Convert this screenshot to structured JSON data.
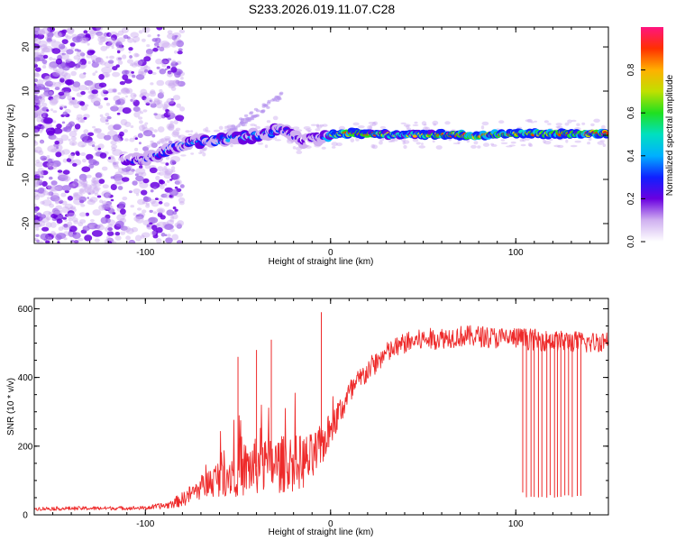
{
  "title": "S233.2026.019.11.07.C28",
  "colors": {
    "snr_line": "#ee2a2a",
    "scatter": "#8a2be2",
    "frame": "#000000"
  },
  "chart_data": [
    {
      "type": "heatmap",
      "name": "spectrogram",
      "xlabel": "Height of straight line (km)",
      "ylabel": "Frequency (Hz)",
      "xlim": [
        -160,
        150
      ],
      "ylim": [
        -24.5,
        24.5
      ],
      "xticks": [
        -100,
        0,
        100
      ],
      "xtick_labels": [
        "-100",
        "0",
        "100"
      ],
      "yticks": [
        -20,
        -10,
        0,
        10,
        20
      ],
      "ytick_labels": [
        "-20",
        "-10",
        "0",
        "10",
        "20"
      ],
      "colorbar": {
        "label": "Normalized spectral amplitude",
        "range": [
          0,
          1
        ],
        "ticks": [
          0,
          0.2,
          0.4,
          0.6,
          0.8
        ],
        "tick_labels": [
          "0.0",
          "0.2",
          "0.4",
          "0.6",
          "0.8"
        ],
        "colormap": [
          "#ffffff",
          "#d0b0f0",
          "#6a00e0",
          "#1020ff",
          "#00b0ff",
          "#00e0c0",
          "#20e020",
          "#c0e000",
          "#ffb000",
          "#ff3000",
          "#ff1480"
        ]
      },
      "ridge_track": {
        "x": [
          -112,
          -105,
          -100,
          -92,
          -85,
          -78,
          -70,
          -62,
          -55,
          -47,
          -40,
          -33,
          -27,
          -22,
          -18,
          -14,
          -10,
          -5,
          0,
          10,
          40,
          60,
          80,
          100,
          120,
          145
        ],
        "freq": [
          -5.6,
          -5.6,
          -5.4,
          -4.2,
          -2.8,
          -2.0,
          -1.4,
          -1.2,
          -0.9,
          -0.4,
          -0.1,
          0.6,
          1.3,
          0.5,
          -0.8,
          -1.6,
          -0.6,
          -0.6,
          0.0,
          0.5,
          0.0,
          0.2,
          -0.1,
          0.4,
          0.3,
          0.4
        ],
        "amplitude": [
          0.25,
          0.3,
          0.3,
          0.35,
          0.35,
          0.4,
          0.35,
          0.4,
          0.45,
          0.4,
          0.4,
          0.4,
          0.35,
          0.3,
          0.3,
          0.2,
          0.3,
          0.3,
          0.6,
          0.95,
          0.7,
          0.9,
          0.95,
          0.85,
          0.9,
          0.95
        ]
      },
      "noise_region_x": [
        -160,
        -85
      ]
    },
    {
      "type": "line",
      "name": "snr",
      "xlabel": "Height of straight line (km)",
      "ylabel": "SNR (10 * v/v)",
      "xlim": [
        -160,
        150
      ],
      "ylim": [
        0,
        630
      ],
      "xticks": [
        -100,
        0,
        100
      ],
      "xtick_labels": [
        "-100",
        "0",
        "100"
      ],
      "yticks": [
        0,
        200,
        400,
        600
      ],
      "ytick_labels": [
        "0",
        "200",
        "400",
        "600"
      ],
      "envelope": {
        "x": [
          -160,
          -100,
          -88,
          -80,
          -70,
          -60,
          -50,
          -40,
          -30,
          -20,
          -10,
          -5,
          0,
          10,
          20,
          30,
          40,
          50,
          60,
          70,
          80,
          90,
          100,
          110,
          120,
          130,
          140,
          150
        ],
        "median": [
          18,
          20,
          28,
          45,
          80,
          110,
          130,
          140,
          145,
          150,
          160,
          200,
          250,
          350,
          420,
          470,
          500,
          510,
          515,
          520,
          520,
          515,
          515,
          510,
          505,
          505,
          500,
          510
        ],
        "spread": [
          8,
          8,
          15,
          30,
          50,
          80,
          110,
          120,
          120,
          120,
          110,
          90,
          70,
          60,
          50,
          45,
          45,
          45,
          45,
          45,
          45,
          45,
          45,
          45,
          45,
          45,
          45,
          45
        ]
      },
      "peaks": [
        {
          "x": -50,
          "y": 460
        },
        {
          "x": -40,
          "y": 480
        },
        {
          "x": -32,
          "y": 510
        },
        {
          "x": -5,
          "y": 590
        }
      ],
      "dropouts": {
        "x_range": [
          104,
          135
        ],
        "count": 16,
        "min_y": 50,
        "first_x": 104,
        "first_y": 65
      }
    }
  ]
}
